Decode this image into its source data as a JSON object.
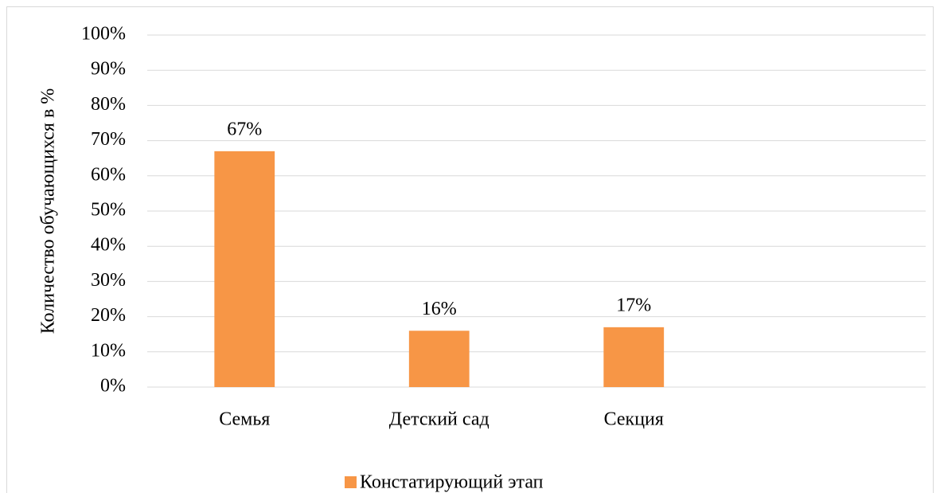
{
  "chart_data": {
    "type": "bar",
    "y_label": "Количество обучающихся в %",
    "categories": [
      "Семья",
      "Детский сад",
      "Секция",
      null
    ],
    "series": [
      {
        "name": "Констатирующий этап",
        "color": "#f79646",
        "values": [
          67,
          16,
          17,
          null
        ],
        "value_labels": [
          "67%",
          "16%",
          "17%",
          null
        ]
      }
    ],
    "ylim": [
      0,
      100
    ],
    "yticks": [
      {
        "value": 0,
        "label": "0%"
      },
      {
        "value": 10,
        "label": "10%"
      },
      {
        "value": 20,
        "label": "20%"
      },
      {
        "value": 30,
        "label": "30%"
      },
      {
        "value": 40,
        "label": "40%"
      },
      {
        "value": 50,
        "label": "50%"
      },
      {
        "value": 60,
        "label": "60%"
      },
      {
        "value": 70,
        "label": "70%"
      },
      {
        "value": 80,
        "label": "80%"
      },
      {
        "value": 90,
        "label": "90%"
      },
      {
        "value": 100,
        "label": "100%"
      }
    ],
    "grid": true,
    "legend": "bottom"
  }
}
